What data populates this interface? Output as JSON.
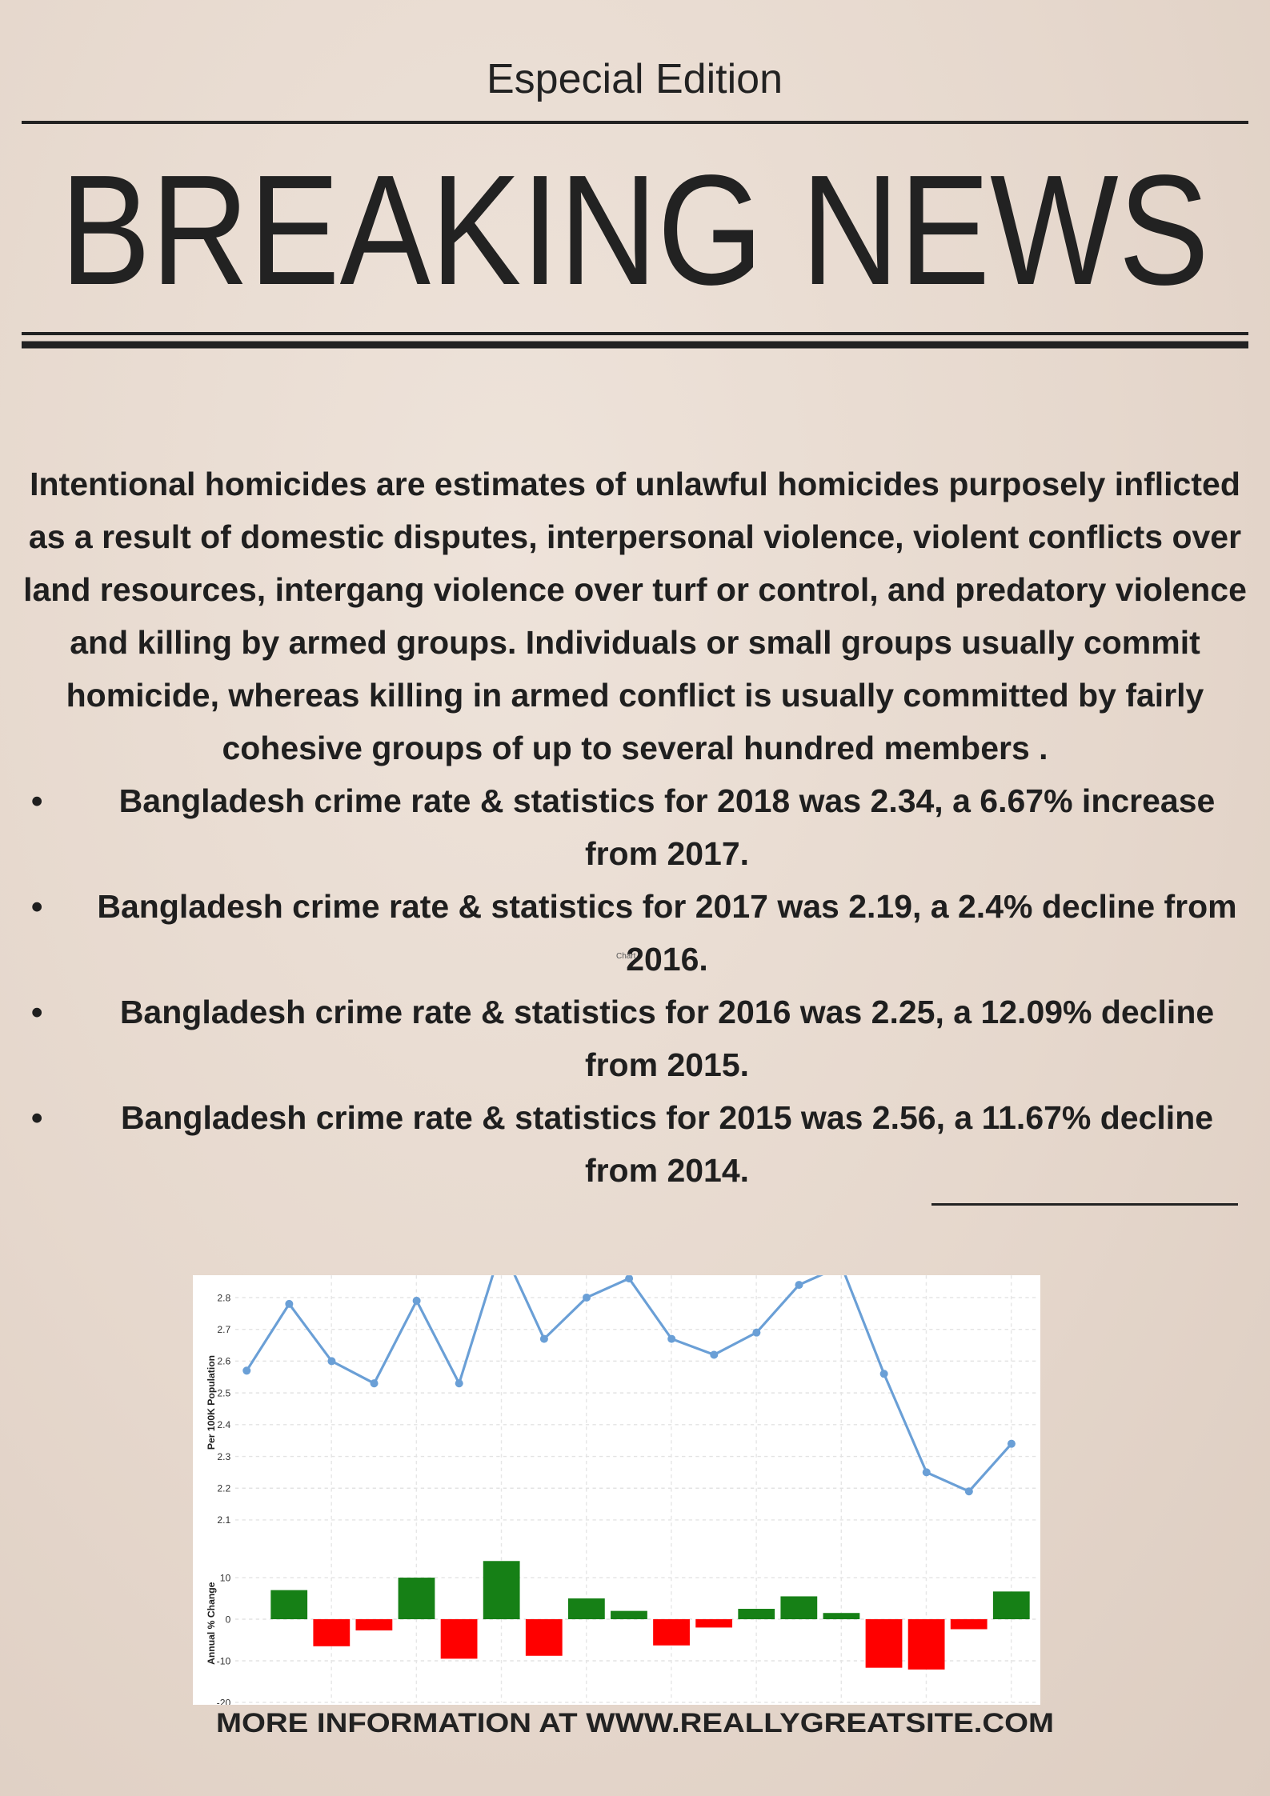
{
  "header": {
    "edition": "Especial Edition",
    "title": "BREAKING NEWS"
  },
  "body": {
    "paragraph": "Intentional homicides are estimates of unlawful homicides purposely inflicted as a result of domestic disputes, interpersonal violence, violent conflicts over land resources, intergang violence over turf or control, and predatory violence and killing by armed groups. Individuals or small groups usually commit homicide, whereas killing in armed conflict is usually committed by fairly cohesive groups of up to several hundred members .",
    "bullets": [
      "Bangladesh crime rate & statistics for 2018 was 2.34, a 6.67% increase from 2017.",
      "Bangladesh crime rate & statistics for 2017 was 2.19, a 2.4% decline from 2016.",
      "Bangladesh crime rate & statistics for 2016 was 2.25, a 12.09% decline from 2015.",
      "Bangladesh crime rate & statistics for 2015 was 2.56, a 11.67% decline from 2014."
    ]
  },
  "chart_caption": "Chart",
  "chart_data": [
    {
      "type": "line",
      "ylabel": "Per 100K Population",
      "categories": [
        null,
        null,
        null,
        null,
        null,
        null,
        null,
        null,
        null,
        null,
        null,
        null,
        null,
        null,
        null,
        null,
        null,
        null,
        null
      ],
      "values": [
        2.57,
        2.78,
        2.6,
        2.53,
        2.79,
        2.53,
        2.96,
        2.67,
        2.8,
        2.86,
        2.67,
        2.62,
        2.69,
        2.84,
        2.9,
        2.56,
        2.25,
        2.19,
        2.34
      ],
      "color": "#6a9fd6",
      "ylim": [
        2.07,
        2.87
      ],
      "yticks": [
        2.1,
        2.2,
        2.3,
        2.4,
        2.5,
        2.6,
        2.7,
        2.8
      ],
      "grid": true
    },
    {
      "type": "bar",
      "ylabel": "Annual % Change",
      "categories": [
        null,
        null,
        null,
        null,
        null,
        null,
        null,
        null,
        null,
        null,
        null,
        null,
        null,
        null,
        null,
        null,
        null,
        null
      ],
      "values": [
        7,
        -6.5,
        -2.7,
        10,
        -9.5,
        14,
        -8.8,
        5,
        2,
        -6.3,
        -2,
        2.5,
        5.5,
        1.5,
        -11.67,
        -12.09,
        -2.4,
        6.67
      ],
      "colors": [
        "#168016",
        "#ff0000",
        "#ff0000",
        "#168016",
        "#ff0000",
        "#168016",
        "#ff0000",
        "#168016",
        "#168016",
        "#ff0000",
        "#ff0000",
        "#168016",
        "#168016",
        "#168016",
        "#ff0000",
        "#ff0000",
        "#ff0000",
        "#168016"
      ],
      "ylim": [
        -20,
        18
      ],
      "yticks": [
        -20,
        -10,
        0,
        10
      ],
      "grid": true
    }
  ],
  "footer": {
    "text": "MORE INFORMATION AT WWW.REALLYGREATSITE.COM"
  }
}
